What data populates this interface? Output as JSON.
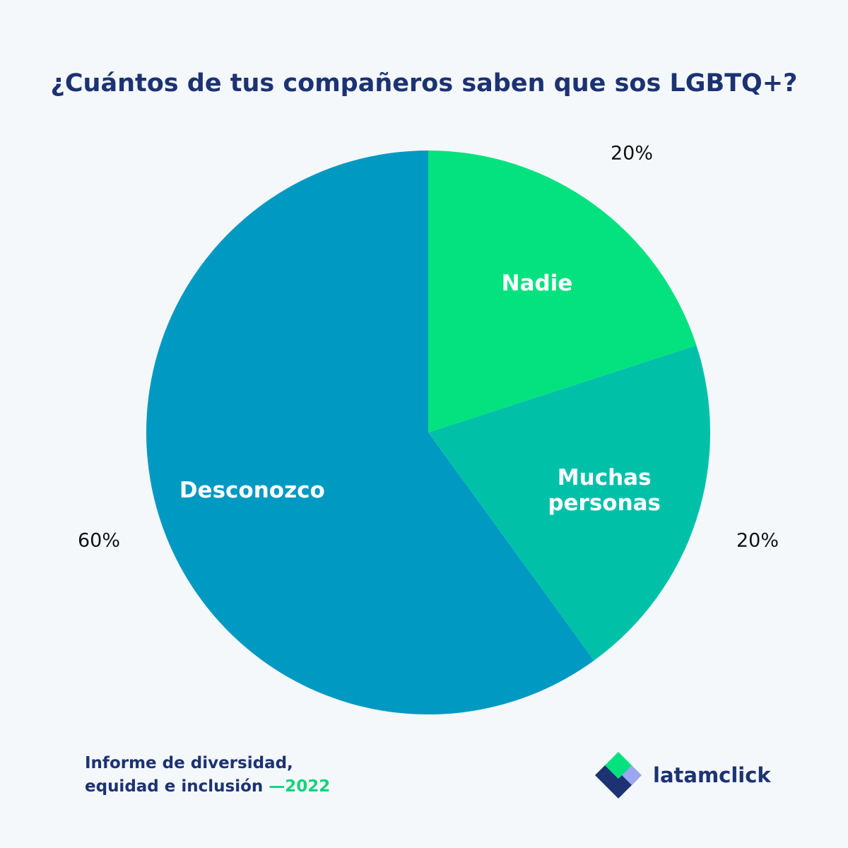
{
  "title": "¿Cuántos de tus compañeros saben que sos LGBTQ+?",
  "footer": {
    "line1": "Informe de diversidad,",
    "line2": "equidad e inclusión",
    "year": "—2022"
  },
  "brand": {
    "name": "latamclick",
    "icon": "latamclick-logo-icon"
  },
  "colors": {
    "background": "#f4f8fb",
    "title": "#1c3272",
    "accent": "#12d37a"
  },
  "chart_data": {
    "type": "pie",
    "title": "¿Cuántos de tus compañeros saben que sos LGBTQ+?",
    "start": "top",
    "direction": "clockwise",
    "slices": [
      {
        "label": [
          "Nadie"
        ],
        "value": 20,
        "value_label": "20%",
        "color": "#03e27e"
      },
      {
        "label": [
          "Muchas",
          "personas"
        ],
        "value": 20,
        "value_label": "20%",
        "color": "#00c1a8"
      },
      {
        "label": [
          "Desconozco"
        ],
        "value": 60,
        "value_label": "60%",
        "color": "#0099c2"
      }
    ]
  }
}
